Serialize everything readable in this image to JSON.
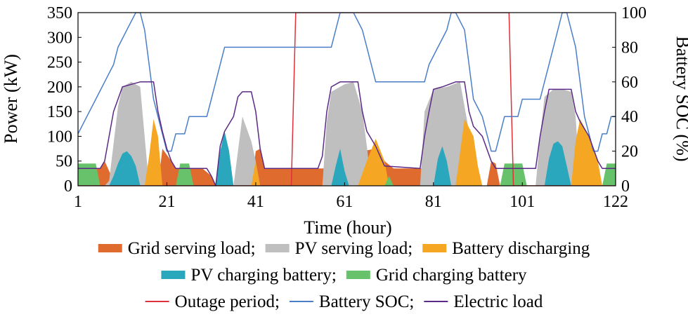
{
  "chart_data": {
    "type": "area",
    "xlabel": "Time (hour)",
    "ylabel": "Power (kW)",
    "y2label": "Battery SOC (%)",
    "xlim": [
      1,
      122
    ],
    "ylim": [
      0,
      350
    ],
    "y2lim": [
      0,
      100
    ],
    "xticks": [
      1,
      21,
      41,
      61,
      81,
      101,
      122
    ],
    "yticks": [
      0,
      50,
      100,
      150,
      200,
      250,
      300,
      350
    ],
    "y2ticks": [
      0,
      20,
      40,
      60,
      80,
      100
    ],
    "legend_rows": [
      [
        "Grid serving load;",
        "PV serving load;",
        "Battery discharging"
      ],
      [
        "PV charging battery;",
        "Grid charging battery"
      ],
      [
        "Outage period;",
        "Battery SOC;",
        "Electric load"
      ]
    ],
    "colors": {
      "grid_serving_load": "#E06B2E",
      "pv_serving_load": "#BFBFBF",
      "battery_discharging": "#F5A623",
      "pv_charging_battery": "#2BA7BD",
      "grid_charging_battery": "#68C26B",
      "outage_period": "#E0303A",
      "battery_soc": "#4A7EC9",
      "electric_load": "#5B2A86"
    },
    "series": [
      {
        "name": "Grid serving load;",
        "kind": "area",
        "color": "#E06B2E",
        "points": [
          [
            1,
            35
          ],
          [
            6,
            35
          ],
          [
            7,
            50
          ],
          [
            9,
            10
          ],
          [
            12,
            0
          ],
          [
            19,
            0
          ],
          [
            20,
            75
          ],
          [
            22,
            50
          ],
          [
            23,
            35
          ],
          [
            29,
            35
          ],
          [
            31,
            20
          ],
          [
            32,
            0
          ],
          [
            40,
            0
          ],
          [
            41,
            70
          ],
          [
            42,
            75
          ],
          [
            43,
            35
          ],
          [
            58,
            35
          ],
          [
            59,
            20
          ],
          [
            60,
            0
          ],
          [
            64,
            0
          ],
          [
            65,
            70
          ],
          [
            68,
            75
          ],
          [
            70,
            50
          ],
          [
            72,
            35
          ],
          [
            79,
            35
          ],
          [
            80,
            0
          ],
          [
            93,
            0
          ],
          [
            94,
            50
          ],
          [
            95,
            45
          ],
          [
            96,
            0
          ],
          [
            122,
            0
          ]
        ]
      },
      {
        "name": "PV serving load;",
        "kind": "area",
        "color": "#BFBFBF",
        "points": [
          [
            1,
            0
          ],
          [
            7,
            0
          ],
          [
            8,
            10
          ],
          [
            10,
            160
          ],
          [
            11,
            200
          ],
          [
            13,
            210
          ],
          [
            15,
            200
          ],
          [
            16,
            100
          ],
          [
            17,
            0
          ],
          [
            36,
            0
          ],
          [
            38,
            140
          ],
          [
            40,
            90
          ],
          [
            41,
            50
          ],
          [
            42,
            0
          ],
          [
            56,
            0
          ],
          [
            57,
            130
          ],
          [
            58,
            190
          ],
          [
            61,
            205
          ],
          [
            63,
            210
          ],
          [
            65,
            150
          ],
          [
            66,
            80
          ],
          [
            67,
            0
          ],
          [
            78,
            0
          ],
          [
            79,
            150
          ],
          [
            81,
            195
          ],
          [
            84,
            200
          ],
          [
            87,
            210
          ],
          [
            89,
            110
          ],
          [
            90,
            0
          ],
          [
            104,
            0
          ],
          [
            105,
            100
          ],
          [
            106,
            180
          ],
          [
            108,
            195
          ],
          [
            110,
            195
          ],
          [
            112,
            190
          ],
          [
            113,
            140
          ],
          [
            114,
            0
          ],
          [
            122,
            0
          ]
        ]
      },
      {
        "name": "Battery discharging",
        "kind": "area",
        "color": "#F5A623",
        "points": [
          [
            1,
            0
          ],
          [
            16,
            0
          ],
          [
            17,
            60
          ],
          [
            18,
            135
          ],
          [
            19,
            100
          ],
          [
            20,
            0
          ],
          [
            40,
            0
          ],
          [
            41,
            50
          ],
          [
            42,
            0
          ],
          [
            64,
            0
          ],
          [
            66,
            50
          ],
          [
            68,
            95
          ],
          [
            70,
            50
          ],
          [
            71,
            0
          ],
          [
            86,
            0
          ],
          [
            88,
            135
          ],
          [
            90,
            100
          ],
          [
            91,
            40
          ],
          [
            92,
            0
          ],
          [
            112,
            0
          ],
          [
            113,
            90
          ],
          [
            114,
            135
          ],
          [
            116,
            100
          ],
          [
            118,
            50
          ],
          [
            119,
            0
          ],
          [
            122,
            0
          ]
        ]
      },
      {
        "name": "PV charging battery;",
        "kind": "area",
        "color": "#2BA7BD",
        "points": [
          [
            1,
            0
          ],
          [
            8,
            0
          ],
          [
            9,
            20
          ],
          [
            10,
            45
          ],
          [
            11,
            65
          ],
          [
            12,
            70
          ],
          [
            13,
            60
          ],
          [
            14,
            40
          ],
          [
            15,
            0
          ],
          [
            32,
            0
          ],
          [
            33,
            70
          ],
          [
            34,
            110
          ],
          [
            35,
            70
          ],
          [
            36,
            0
          ],
          [
            58,
            0
          ],
          [
            59,
            40
          ],
          [
            60,
            75
          ],
          [
            61,
            30
          ],
          [
            62,
            0
          ],
          [
            81,
            0
          ],
          [
            82,
            55
          ],
          [
            83,
            80
          ],
          [
            84,
            50
          ],
          [
            85,
            0
          ],
          [
            106,
            0
          ],
          [
            107,
            55
          ],
          [
            108,
            85
          ],
          [
            109,
            90
          ],
          [
            110,
            80
          ],
          [
            111,
            40
          ],
          [
            112,
            0
          ],
          [
            122,
            0
          ]
        ]
      },
      {
        "name": "Grid charging battery",
        "kind": "area",
        "color": "#68C26B",
        "points": [
          [
            1,
            45
          ],
          [
            5,
            45
          ],
          [
            6,
            0
          ],
          [
            23,
            0
          ],
          [
            24,
            45
          ],
          [
            26,
            45
          ],
          [
            27,
            0
          ],
          [
            70,
            0
          ],
          [
            71,
            20
          ],
          [
            72,
            0
          ],
          [
            96,
            0
          ],
          [
            97,
            45
          ],
          [
            101,
            45
          ],
          [
            102,
            0
          ],
          [
            119,
            0
          ],
          [
            120,
            45
          ],
          [
            122,
            45
          ]
        ]
      },
      {
        "name": "Outage period;",
        "kind": "line",
        "axis": "left",
        "color": "#E0303A",
        "points": [
          [
            1,
            0
          ],
          [
            49,
            0
          ],
          [
            50,
            350
          ],
          [
            98,
            350
          ],
          [
            99,
            0
          ],
          [
            122,
            0
          ]
        ]
      },
      {
        "name": "Battery SOC;",
        "kind": "line",
        "axis": "right",
        "color": "#4A7EC9",
        "points": [
          [
            1,
            30
          ],
          [
            3,
            40
          ],
          [
            5,
            50
          ],
          [
            7,
            60
          ],
          [
            9,
            70
          ],
          [
            10,
            80
          ],
          [
            12,
            90
          ],
          [
            14,
            100
          ],
          [
            15,
            100
          ],
          [
            16,
            90
          ],
          [
            17,
            70
          ],
          [
            18,
            50
          ],
          [
            19,
            40
          ],
          [
            20,
            30
          ],
          [
            21,
            20
          ],
          [
            22,
            20
          ],
          [
            23,
            30
          ],
          [
            25,
            30
          ],
          [
            26,
            40
          ],
          [
            30,
            40
          ],
          [
            31,
            50
          ],
          [
            32,
            60
          ],
          [
            33,
            70
          ],
          [
            34,
            80
          ],
          [
            48,
            80
          ],
          [
            49,
            80
          ],
          [
            55,
            80
          ],
          [
            58,
            80
          ],
          [
            59,
            90
          ],
          [
            60,
            100
          ],
          [
            63,
            100
          ],
          [
            65,
            90
          ],
          [
            66,
            80
          ],
          [
            67,
            70
          ],
          [
            68,
            60
          ],
          [
            79,
            60
          ],
          [
            80,
            70
          ],
          [
            82,
            80
          ],
          [
            84,
            90
          ],
          [
            85,
            100
          ],
          [
            86,
            100
          ],
          [
            88,
            90
          ],
          [
            89,
            70
          ],
          [
            90,
            50
          ],
          [
            92,
            40
          ],
          [
            93,
            30
          ],
          [
            94,
            20
          ],
          [
            95,
            20
          ],
          [
            96,
            30
          ],
          [
            97,
            40
          ],
          [
            100,
            40
          ],
          [
            101,
            50
          ],
          [
            105,
            50
          ],
          [
            106,
            60
          ],
          [
            107,
            70
          ],
          [
            108,
            80
          ],
          [
            109,
            90
          ],
          [
            110,
            100
          ],
          [
            111,
            100
          ],
          [
            112,
            90
          ],
          [
            113,
            80
          ],
          [
            114,
            60
          ],
          [
            115,
            40
          ],
          [
            116,
            30
          ],
          [
            117,
            20
          ],
          [
            118,
            20
          ],
          [
            119,
            30
          ],
          [
            120,
            30
          ],
          [
            121,
            40
          ],
          [
            122,
            40
          ]
        ]
      },
      {
        "name": "Electric load",
        "kind": "line",
        "axis": "left",
        "color": "#5B2A86",
        "points": [
          [
            1,
            35
          ],
          [
            6,
            35
          ],
          [
            7,
            50
          ],
          [
            9,
            150
          ],
          [
            11,
            200
          ],
          [
            13,
            205
          ],
          [
            15,
            210
          ],
          [
            18,
            210
          ],
          [
            19,
            150
          ],
          [
            20,
            110
          ],
          [
            21,
            75
          ],
          [
            22,
            50
          ],
          [
            23,
            35
          ],
          [
            30,
            35
          ],
          [
            31,
            20
          ],
          [
            32,
            0
          ],
          [
            33,
            80
          ],
          [
            34,
            110
          ],
          [
            36,
            140
          ],
          [
            37,
            180
          ],
          [
            38,
            190
          ],
          [
            40,
            190
          ],
          [
            41,
            150
          ],
          [
            42,
            75
          ],
          [
            43,
            35
          ],
          [
            55,
            35
          ],
          [
            56,
            60
          ],
          [
            57,
            150
          ],
          [
            58,
            200
          ],
          [
            60,
            210
          ],
          [
            64,
            210
          ],
          [
            65,
            150
          ],
          [
            66,
            110
          ],
          [
            68,
            80
          ],
          [
            69,
            60
          ],
          [
            70,
            40
          ],
          [
            78,
            35
          ],
          [
            79,
            100
          ],
          [
            80,
            150
          ],
          [
            81,
            195
          ],
          [
            83,
            200
          ],
          [
            86,
            210
          ],
          [
            88,
            210
          ],
          [
            89,
            150
          ],
          [
            90,
            120
          ],
          [
            92,
            100
          ],
          [
            93,
            75
          ],
          [
            94,
            50
          ],
          [
            95,
            35
          ],
          [
            104,
            35
          ],
          [
            105,
            100
          ],
          [
            106,
            150
          ],
          [
            107,
            195
          ],
          [
            112,
            195
          ],
          [
            113,
            150
          ],
          [
            114,
            130
          ],
          [
            116,
            100
          ],
          [
            117,
            75
          ],
          [
            118,
            50
          ],
          [
            119,
            35
          ],
          [
            122,
            35
          ]
        ]
      }
    ]
  }
}
